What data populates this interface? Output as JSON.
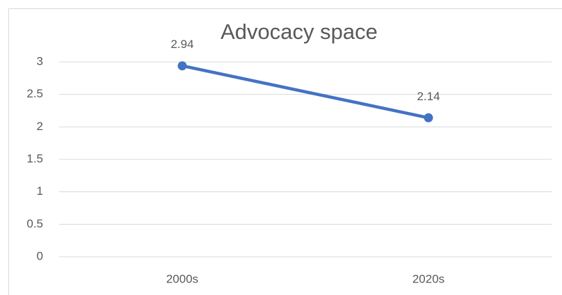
{
  "chart_data": {
    "type": "line",
    "title": "Advocacy space",
    "categories": [
      "2000s",
      "2020s"
    ],
    "series": [
      {
        "name": "Advocacy space",
        "color": "#4472c4",
        "values": [
          2.94,
          2.14
        ]
      }
    ],
    "ylim": [
      0,
      3
    ],
    "yticks": [
      0,
      0.5,
      1,
      1.5,
      2,
      2.5,
      3
    ],
    "grid": true
  }
}
